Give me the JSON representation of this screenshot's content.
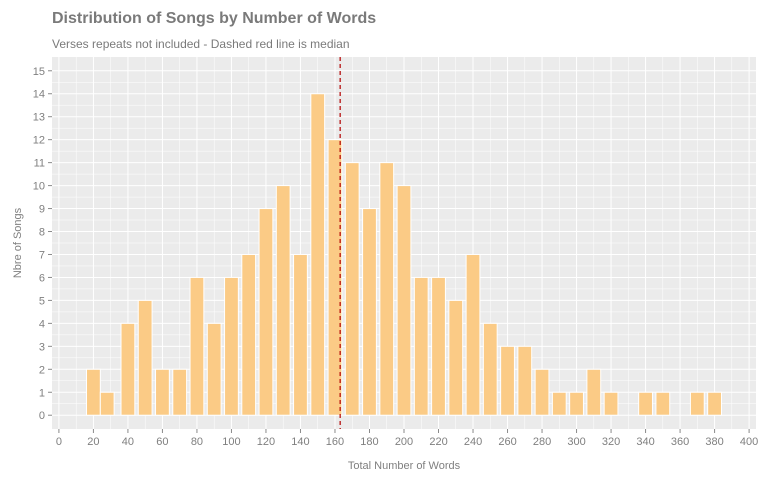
{
  "chart_data": {
    "type": "bar",
    "title": "Distribution of Songs by Number of Words",
    "subtitle": "Verses repeats not included - Dashed red line is median",
    "xlabel": "Total Number of Words",
    "ylabel": "Nbre of Songs",
    "xlim": [
      -4,
      404
    ],
    "ylim": [
      -0.6,
      15.6
    ],
    "bin_width": 8,
    "x_ticks": [
      0,
      20,
      40,
      60,
      80,
      100,
      120,
      140,
      160,
      180,
      200,
      220,
      240,
      260,
      280,
      300,
      320,
      340,
      360,
      380,
      400
    ],
    "y_ticks": [
      0,
      1,
      2,
      3,
      4,
      5,
      6,
      7,
      8,
      9,
      10,
      11,
      12,
      13,
      14,
      15
    ],
    "bins": [
      {
        "x": 20,
        "count": 2
      },
      {
        "x": 28,
        "count": 1
      },
      {
        "x": 40,
        "count": 4
      },
      {
        "x": 50,
        "count": 5
      },
      {
        "x": 60,
        "count": 2
      },
      {
        "x": 70,
        "count": 2
      },
      {
        "x": 80,
        "count": 6
      },
      {
        "x": 90,
        "count": 4
      },
      {
        "x": 100,
        "count": 6
      },
      {
        "x": 110,
        "count": 7
      },
      {
        "x": 120,
        "count": 9
      },
      {
        "x": 130,
        "count": 10
      },
      {
        "x": 140,
        "count": 7
      },
      {
        "x": 150,
        "count": 14
      },
      {
        "x": 160,
        "count": 12
      },
      {
        "x": 170,
        "count": 11
      },
      {
        "x": 180,
        "count": 9
      },
      {
        "x": 190,
        "count": 11
      },
      {
        "x": 200,
        "count": 10
      },
      {
        "x": 210,
        "count": 6
      },
      {
        "x": 220,
        "count": 6
      },
      {
        "x": 230,
        "count": 5
      },
      {
        "x": 240,
        "count": 7
      },
      {
        "x": 250,
        "count": 4
      },
      {
        "x": 260,
        "count": 3
      },
      {
        "x": 270,
        "count": 3
      },
      {
        "x": 280,
        "count": 2
      },
      {
        "x": 290,
        "count": 1
      },
      {
        "x": 300,
        "count": 1
      },
      {
        "x": 310,
        "count": 2
      },
      {
        "x": 320,
        "count": 1
      },
      {
        "x": 340,
        "count": 1
      },
      {
        "x": 350,
        "count": 1
      },
      {
        "x": 370,
        "count": 1
      },
      {
        "x": 380,
        "count": 1
      }
    ],
    "median": 163,
    "grid": true,
    "colors": {
      "bar": "#fbcb86",
      "bar_outline": "#ffffff",
      "panel": "#ebebeb",
      "grid": "#ffffff",
      "median": "#b30000",
      "text": "#7f7f7f"
    }
  }
}
